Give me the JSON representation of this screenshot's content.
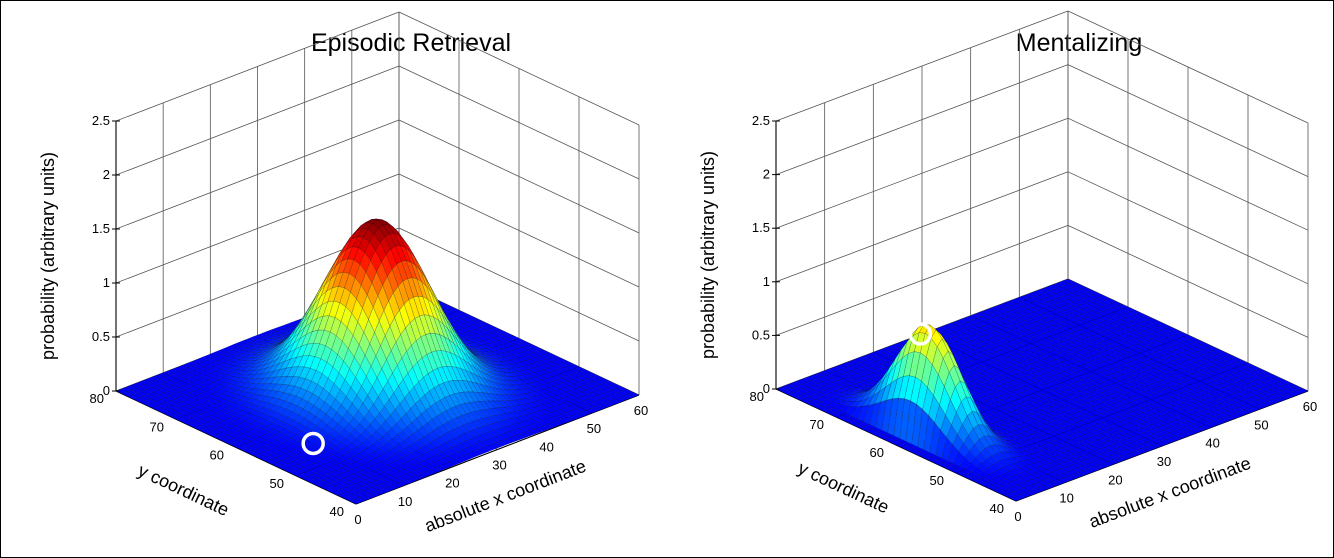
{
  "chart_data": [
    {
      "type": "surface",
      "title": "Episodic Retrieval",
      "xlabel": "absolute x coordinate",
      "ylabel": "y coordinate",
      "zlabel": "probability (arbitrary units)",
      "xlim": [
        0,
        60
      ],
      "ylim": [
        40,
        80
      ],
      "zlim": [
        0,
        2.5
      ],
      "xticks": [
        "0",
        "10",
        "20",
        "30",
        "40",
        "50",
        "60"
      ],
      "yticks": [
        "40",
        "50",
        "60",
        "70",
        "80"
      ],
      "zticks": [
        "0",
        "0.5",
        "1",
        "1.5",
        "2",
        "2.5"
      ],
      "grid": true,
      "colormap": "jet",
      "surface": {
        "shape": "gaussian",
        "peak_x": 30,
        "peak_y": 60,
        "peak_z": 1.6,
        "sigma_x": 8,
        "sigma_y": 6.5
      },
      "marker": {
        "x": 10,
        "y": 55,
        "z": 0,
        "style": "white circle"
      }
    },
    {
      "type": "surface",
      "title": "Mentalizing",
      "xlabel": "absolute x coordinate",
      "ylabel": "y coordinate",
      "zlabel": "probability (arbitrary units)",
      "xlim": [
        0,
        60
      ],
      "ylim": [
        40,
        80
      ],
      "zlim": [
        0,
        2.5
      ],
      "xticks": [
        "0",
        "10",
        "20",
        "30",
        "40",
        "50",
        "60"
      ],
      "yticks": [
        "40",
        "50",
        "60",
        "70",
        "80"
      ],
      "zticks": [
        "0",
        "0.5",
        "1",
        "1.5",
        "2",
        "2.5"
      ],
      "grid": true,
      "colormap": "jet",
      "surface": {
        "shape": "half-gaussian ridge",
        "peak_x": 7,
        "peak_y": 60,
        "peak_z": 1.0,
        "sigma_x": 2.8,
        "sigma_y": 5
      },
      "marker": {
        "x": 5,
        "y": 60,
        "z": 0.95,
        "style": "white circle"
      }
    }
  ]
}
